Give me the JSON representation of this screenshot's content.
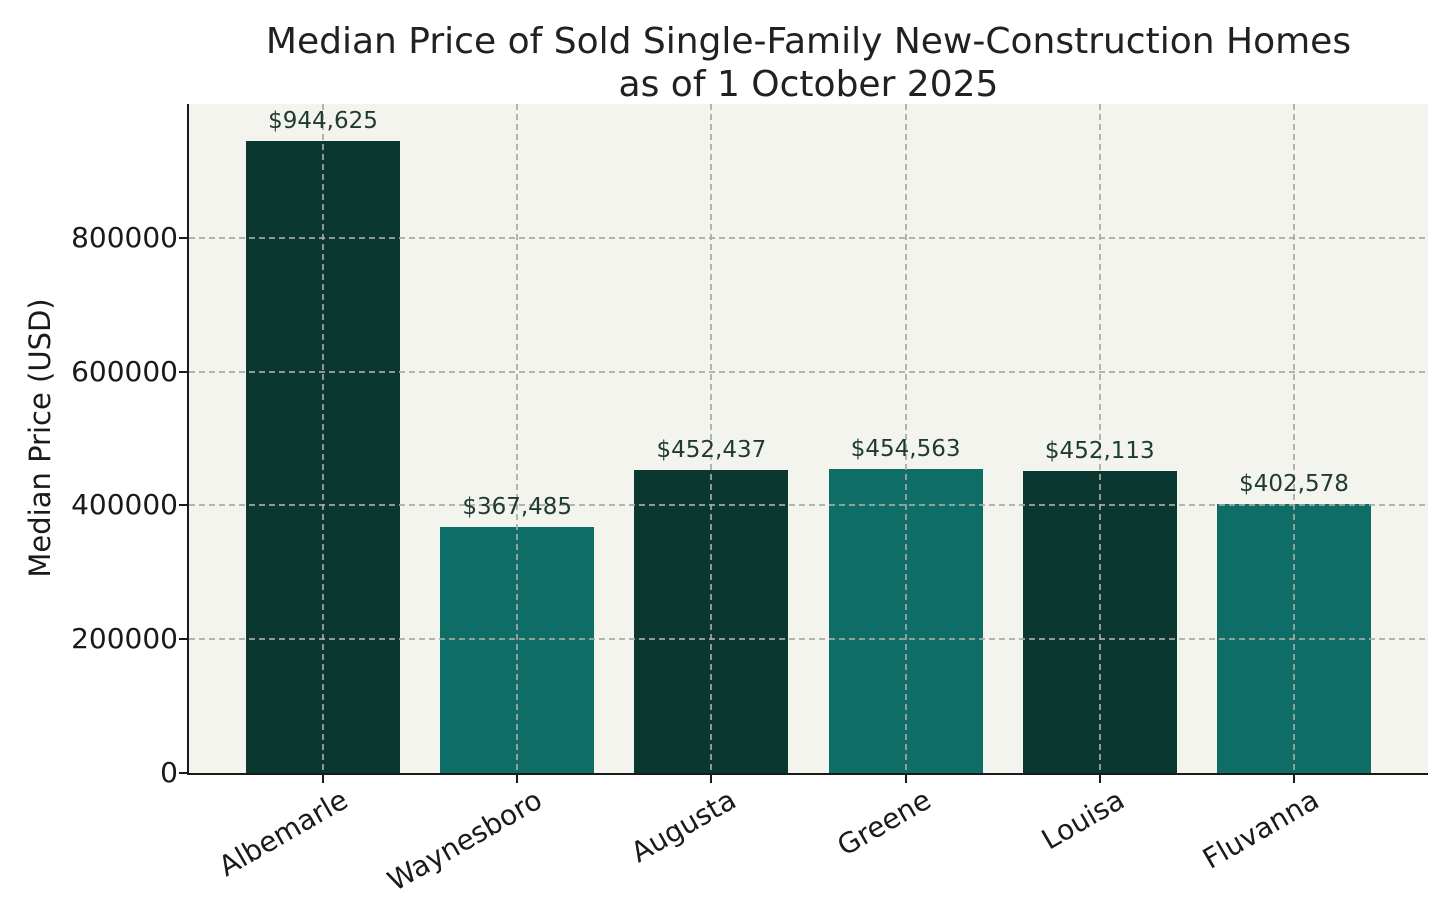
{
  "chart_data": {
    "type": "bar",
    "title": "Median Price of Sold Single-Family New-Construction Homes as of 1 October 2025",
    "title_lines": [
      "Median Price of Sold Single-Family New-Construction Homes",
      "as of 1 October 2025"
    ],
    "xlabel": "",
    "ylabel": "Median Price (USD)",
    "categories": [
      "Albemarle",
      "Waynesboro",
      "Augusta",
      "Greene",
      "Louisa",
      "Fluvanna"
    ],
    "values": [
      944625,
      367485,
      452437,
      454563,
      452113,
      402578
    ],
    "bar_value_labels": [
      "$944,625",
      "$367,485",
      "$452,437",
      "$454,563",
      "$452,113",
      "$402,578"
    ],
    "bar_colors": [
      "#0a372f",
      "#0e6d66",
      "#0a372f",
      "#0e6d66",
      "#0a372f",
      "#0e6d66"
    ],
    "ylim": [
      0,
      1000000
    ],
    "yticks": [
      0,
      200000,
      400000,
      600000,
      800000
    ],
    "ytick_labels": [
      "0",
      "200000",
      "400000",
      "600000",
      "800000"
    ],
    "grid": true,
    "grid_style": "dashed",
    "legend": false,
    "colors": {
      "plot_background": "#f4f4ee",
      "figure_background": "#ffffff",
      "grid": "#a5aaa5",
      "axis": "#1a1a1a",
      "title_text": "#212121",
      "value_label_text": "#1f3933"
    }
  }
}
